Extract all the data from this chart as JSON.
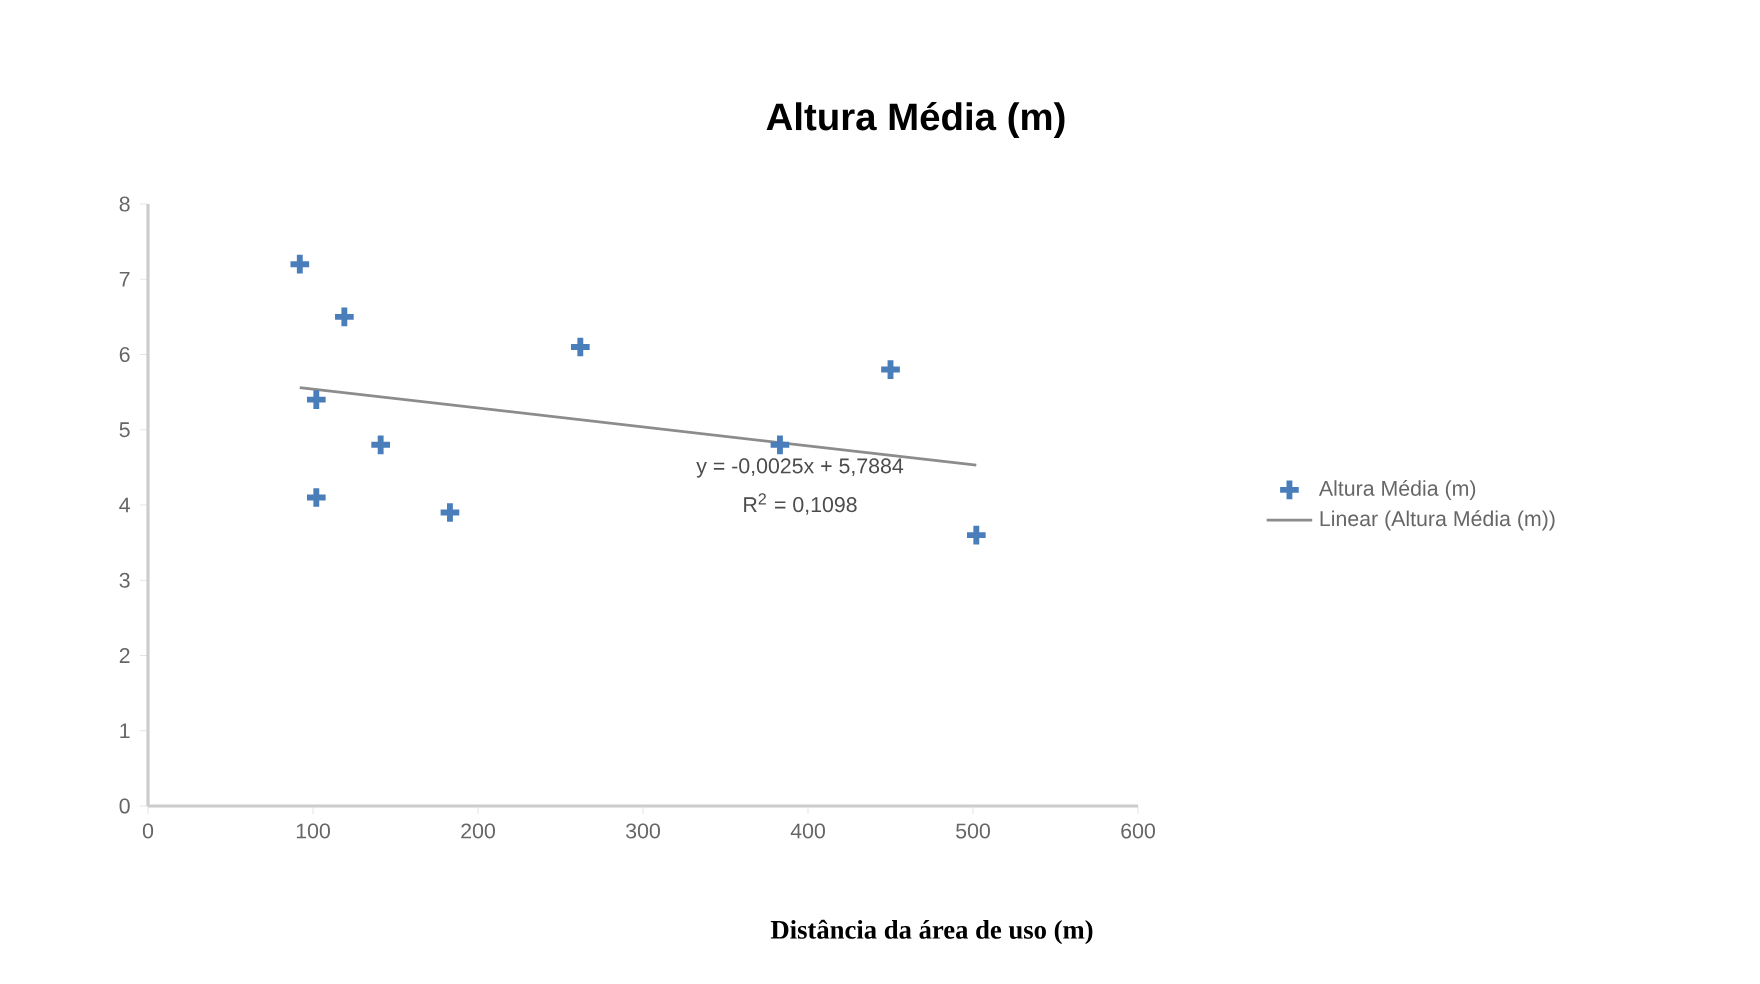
{
  "chart_data": {
    "type": "scatter",
    "title": "Altura Média (m)",
    "xlabel": "Distância da área de uso (m)",
    "series": [
      {
        "name": "Altura Média (m)",
        "color": "#4a7ebb",
        "marker": "cross",
        "x": [
          92,
          119,
          102,
          102,
          141,
          183,
          262,
          383,
          450,
          502
        ],
        "values": [
          7.2,
          6.5,
          5.4,
          4.1,
          4.8,
          3.9,
          6.1,
          4.8,
          5.8,
          3.6
        ]
      },
      {
        "name": "Linear (Altura Média (m))",
        "type": "line",
        "color": "#8c8c8c",
        "marker": "none",
        "line_style": "solid",
        "x": [
          92,
          502
        ],
        "values": [
          5.56,
          4.53
        ]
      }
    ],
    "annotations": [
      "y = -0,0025x + 5,7884",
      "R$^{2}$ = 0,1098"
    ],
    "xlim": [
      0,
      600
    ],
    "ylim": [
      0,
      8
    ],
    "xticks": [
      0,
      100,
      200,
      300,
      400,
      500,
      600
    ],
    "yticks": [
      0,
      1,
      2,
      3,
      4,
      5,
      6,
      7,
      8
    ],
    "grid": false,
    "legend": "right"
  }
}
